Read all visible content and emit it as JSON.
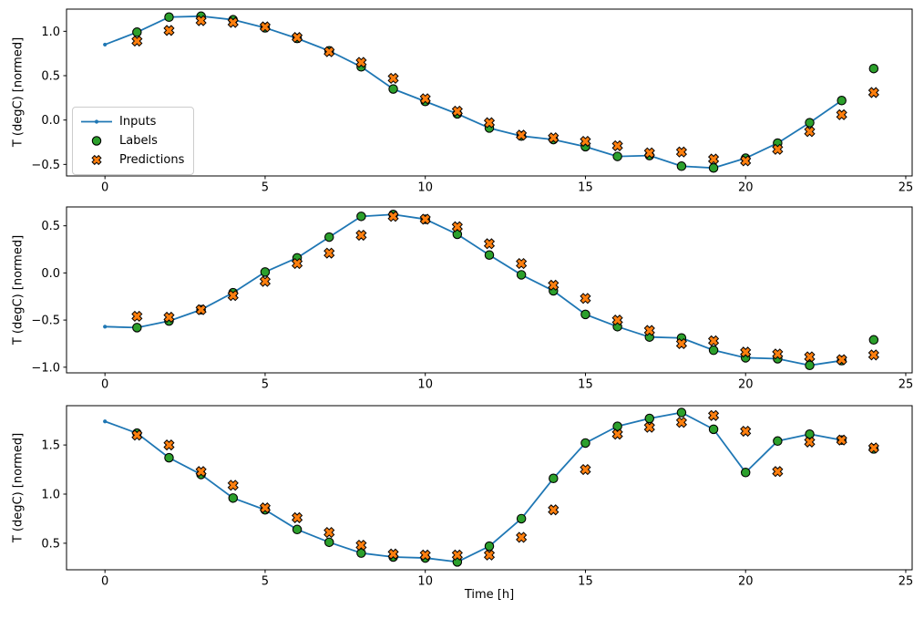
{
  "figure": {
    "xlabel": "Time [h]",
    "ylabel": "T (degC) [normed]",
    "legend": {
      "items": [
        {
          "label": "Inputs",
          "marker": "line-with-dot",
          "color": "#1f77b4"
        },
        {
          "label": "Labels",
          "marker": "circle",
          "color": "#2ca02c"
        },
        {
          "label": "Predictions",
          "marker": "x",
          "color": "#ff7f0e"
        }
      ]
    },
    "colors": {
      "inputs": "#1f77b4",
      "labels": "#2ca02c",
      "predictions": "#ff7f0e",
      "marker_edge": "#000000",
      "axis": "#000000",
      "background": "#ffffff",
      "legend_border": "#cccccc"
    }
  },
  "chart_data": [
    {
      "type": "line",
      "subplot": 1,
      "ylabel": "T (degC) [normed]",
      "xlim": [
        -1.2,
        25.2
      ],
      "ylim": [
        -0.63,
        1.25
      ],
      "xticks": [
        0,
        5,
        10,
        15,
        20,
        25
      ],
      "yticks": [
        1.0,
        0.5,
        0.0,
        -0.5
      ],
      "ytick_labels": [
        "1.0",
        "0.5",
        "0.0",
        "−0.5"
      ],
      "grid": false,
      "series": [
        {
          "name": "Inputs",
          "type": "line",
          "marker": "dot",
          "x": [
            0,
            1,
            2,
            3,
            4,
            5,
            6,
            7,
            8,
            9,
            10,
            11,
            12,
            13,
            14,
            15,
            16,
            17,
            18,
            19,
            20,
            21,
            22,
            23
          ],
          "y": [
            0.85,
            0.99,
            1.16,
            1.17,
            1.13,
            1.04,
            0.92,
            0.78,
            0.6,
            0.35,
            0.21,
            0.07,
            -0.09,
            -0.18,
            -0.22,
            -0.3,
            -0.41,
            -0.4,
            -0.52,
            -0.54,
            -0.43,
            -0.26,
            -0.03,
            0.22
          ]
        },
        {
          "name": "Labels",
          "type": "scatter",
          "marker": "circle",
          "x": [
            1,
            2,
            3,
            4,
            5,
            6,
            7,
            8,
            9,
            10,
            11,
            12,
            13,
            14,
            15,
            16,
            17,
            18,
            19,
            20,
            21,
            22,
            23,
            24
          ],
          "y": [
            0.99,
            1.16,
            1.17,
            1.13,
            1.04,
            0.92,
            0.78,
            0.6,
            0.35,
            0.21,
            0.07,
            -0.09,
            -0.18,
            -0.22,
            -0.3,
            -0.41,
            -0.4,
            -0.52,
            -0.54,
            -0.43,
            -0.26,
            -0.03,
            0.22,
            0.58
          ]
        },
        {
          "name": "Predictions",
          "type": "scatter",
          "marker": "X",
          "x": [
            1,
            2,
            3,
            4,
            5,
            6,
            7,
            8,
            9,
            10,
            11,
            12,
            13,
            14,
            15,
            16,
            17,
            18,
            19,
            20,
            21,
            22,
            23,
            24
          ],
          "y": [
            0.89,
            1.01,
            1.12,
            1.1,
            1.05,
            0.93,
            0.77,
            0.65,
            0.47,
            0.24,
            0.1,
            -0.03,
            -0.17,
            -0.2,
            -0.24,
            -0.29,
            -0.37,
            -0.36,
            -0.44,
            -0.46,
            -0.33,
            -0.13,
            0.06,
            0.31
          ]
        }
      ]
    },
    {
      "type": "line",
      "subplot": 2,
      "ylabel": "T (degC) [normed]",
      "xlim": [
        -1.2,
        25.2
      ],
      "ylim": [
        -1.06,
        0.7
      ],
      "xticks": [
        0,
        5,
        10,
        15,
        20,
        25
      ],
      "yticks": [
        0.5,
        0.0,
        -0.5,
        -1.0
      ],
      "ytick_labels": [
        "0.5",
        "0.0",
        "−0.5",
        "−1.0"
      ],
      "grid": false,
      "series": [
        {
          "name": "Inputs",
          "type": "line",
          "marker": "dot",
          "x": [
            0,
            1,
            2,
            3,
            4,
            5,
            6,
            7,
            8,
            9,
            10,
            11,
            12,
            13,
            14,
            15,
            16,
            17,
            18,
            19,
            20,
            21,
            22,
            23
          ],
          "y": [
            -0.57,
            -0.58,
            -0.51,
            -0.39,
            -0.21,
            0.01,
            0.16,
            0.38,
            0.6,
            0.62,
            0.57,
            0.41,
            0.19,
            -0.02,
            -0.19,
            -0.44,
            -0.57,
            -0.68,
            -0.69,
            -0.82,
            -0.9,
            -0.91,
            -0.98,
            -0.93
          ]
        },
        {
          "name": "Labels",
          "type": "scatter",
          "marker": "circle",
          "x": [
            1,
            2,
            3,
            4,
            5,
            6,
            7,
            8,
            9,
            10,
            11,
            12,
            13,
            14,
            15,
            16,
            17,
            18,
            19,
            20,
            21,
            22,
            23,
            24
          ],
          "y": [
            -0.58,
            -0.51,
            -0.39,
            -0.21,
            0.01,
            0.16,
            0.38,
            0.6,
            0.62,
            0.57,
            0.41,
            0.19,
            -0.02,
            -0.19,
            -0.44,
            -0.57,
            -0.68,
            -0.69,
            -0.82,
            -0.9,
            -0.91,
            -0.98,
            -0.93,
            -0.71
          ]
        },
        {
          "name": "Predictions",
          "type": "scatter",
          "marker": "X",
          "x": [
            1,
            2,
            3,
            4,
            5,
            6,
            7,
            8,
            9,
            10,
            11,
            12,
            13,
            14,
            15,
            16,
            17,
            18,
            19,
            20,
            21,
            22,
            23,
            24
          ],
          "y": [
            -0.46,
            -0.47,
            -0.39,
            -0.24,
            -0.09,
            0.1,
            0.21,
            0.4,
            0.6,
            0.57,
            0.49,
            0.31,
            0.1,
            -0.13,
            -0.27,
            -0.5,
            -0.61,
            -0.75,
            -0.72,
            -0.84,
            -0.86,
            -0.89,
            -0.92,
            -0.87
          ]
        }
      ]
    },
    {
      "type": "line",
      "subplot": 3,
      "ylabel": "T (degC) [normed]",
      "xlabel": "Time [h]",
      "xlim": [
        -1.2,
        25.2
      ],
      "ylim": [
        0.23,
        1.9
      ],
      "xticks": [
        0,
        5,
        10,
        15,
        20,
        25
      ],
      "yticks": [
        1.5,
        1.0,
        0.5
      ],
      "ytick_labels": [
        "1.5",
        "1.0",
        "0.5"
      ],
      "grid": false,
      "series": [
        {
          "name": "Inputs",
          "type": "line",
          "marker": "dot",
          "x": [
            0,
            1,
            2,
            3,
            4,
            5,
            6,
            7,
            8,
            9,
            10,
            11,
            12,
            13,
            14,
            15,
            16,
            17,
            18,
            19,
            20,
            21,
            22,
            23
          ],
          "y": [
            1.74,
            1.62,
            1.37,
            1.2,
            0.96,
            0.84,
            0.64,
            0.51,
            0.4,
            0.36,
            0.35,
            0.31,
            0.47,
            0.75,
            1.16,
            1.52,
            1.69,
            1.77,
            1.83,
            1.66,
            1.22,
            1.54,
            1.61,
            1.55
          ]
        },
        {
          "name": "Labels",
          "type": "scatter",
          "marker": "circle",
          "x": [
            1,
            2,
            3,
            4,
            5,
            6,
            7,
            8,
            9,
            10,
            11,
            12,
            13,
            14,
            15,
            16,
            17,
            18,
            19,
            20,
            21,
            22,
            23,
            24
          ],
          "y": [
            1.62,
            1.37,
            1.2,
            0.96,
            0.84,
            0.64,
            0.51,
            0.4,
            0.36,
            0.35,
            0.31,
            0.47,
            0.75,
            1.16,
            1.52,
            1.69,
            1.77,
            1.83,
            1.66,
            1.22,
            1.54,
            1.61,
            1.55,
            1.46
          ]
        },
        {
          "name": "Predictions",
          "type": "scatter",
          "marker": "X",
          "x": [
            1,
            2,
            3,
            4,
            5,
            6,
            7,
            8,
            9,
            10,
            11,
            12,
            13,
            14,
            15,
            16,
            17,
            18,
            19,
            20,
            21,
            22,
            23,
            24
          ],
          "y": [
            1.6,
            1.5,
            1.23,
            1.09,
            0.86,
            0.76,
            0.61,
            0.48,
            0.39,
            0.38,
            0.38,
            0.38,
            0.56,
            0.84,
            1.25,
            1.61,
            1.68,
            1.73,
            1.8,
            1.64,
            1.23,
            1.53,
            1.55,
            1.47
          ]
        }
      ]
    }
  ]
}
